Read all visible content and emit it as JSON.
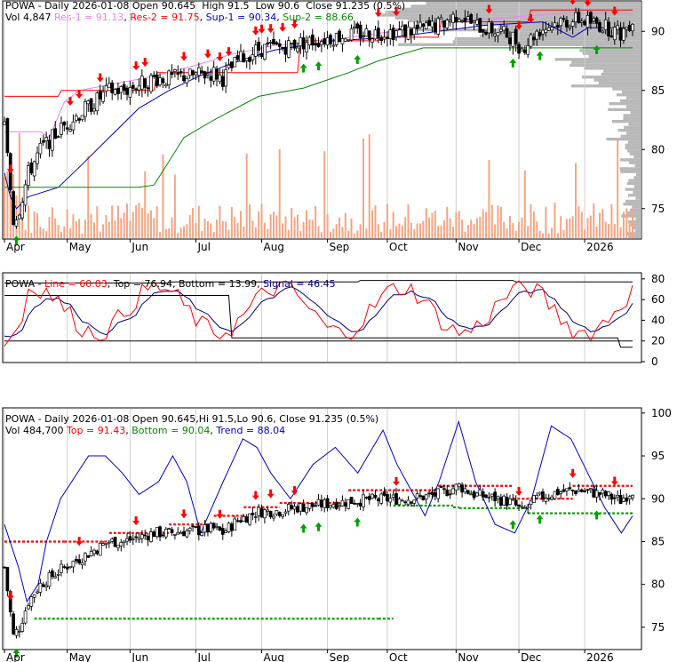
{
  "colors": {
    "up": "#ffffff",
    "down": "#000000",
    "res1": "#ee82ee",
    "res2": "#ff0000",
    "sup1": "#0000cc",
    "sup2": "#008800",
    "volume": "#f4a582",
    "vprofile": "#b0b0b0",
    "line": "#ff0000",
    "signal": "#000080",
    "top": "#000000",
    "bottom": "#000000",
    "trend": "#0000cc",
    "red_arrow": "#ff0000",
    "green_arrow": "#00a000"
  },
  "months": [
    "Apr",
    "May",
    "Jun",
    "Jul",
    "Aug",
    "Sep",
    "Oct",
    "Nov",
    "Dec",
    "2026"
  ],
  "panel1": {
    "ticker": "POWA",
    "desc": "Daily 2026-01-08",
    "open_label": "Open",
    "open": "90.645",
    "high_label": "High",
    "high": "91.5",
    "low_label": "Low",
    "low": "90.6",
    "close_label": "Close",
    "close": "91.235",
    "change": "(0.5%)",
    "vol_label": "Vol",
    "vol": "4,847",
    "res1_label": "Res-1",
    "res1": "91.13",
    "res2_label": "Res-2",
    "res2": "91.75",
    "sup1_label": "Sup-1",
    "sup1": "90.34",
    "sup2_label": "Sup-2",
    "sup2": "88.66",
    "yticks": [
      "90",
      "85",
      "80",
      "75"
    ]
  },
  "panel2": {
    "ticker": "POWA",
    "line_label": "Line",
    "line": "60.03",
    "top_label": "Top",
    "top": "76.94",
    "bottom_label": "Bottom",
    "bottom": "13.99",
    "signal_label": "Signal",
    "signal": "46.45",
    "yticks": [
      "80",
      "60",
      "40",
      "20",
      "0"
    ]
  },
  "panel3": {
    "ticker": "POWA",
    "desc": "Daily 2026-01-08",
    "open_label": "Open",
    "open": "90.645",
    "hi_label": "Hi",
    "hi": "91.5",
    "lo_label": "Lo",
    "lo": "90.6",
    "close_label": "Close",
    "close": "91.235",
    "change": "(0.5%)",
    "vol_label": "Vol",
    "vol": "484,700",
    "top_label": "Top",
    "top": "91.43",
    "bottom_label": "Bottom",
    "bottom": "90.04",
    "trend_label": "Trend",
    "trend": "88.04",
    "yticks": [
      "100",
      "95",
      "90",
      "85",
      "80",
      "75"
    ]
  },
  "chart_data": [
    {
      "type": "candlestick",
      "title": "POWA - Daily 2026-01-08",
      "ylim": [
        72.5,
        92.5
      ],
      "x_range": [
        "2025-04-01",
        "2026-01-08"
      ],
      "price_path": [
        [
          0,
          82
        ],
        [
          3,
          74
        ],
        [
          5,
          75
        ],
        [
          8,
          78
        ],
        [
          12,
          80
        ],
        [
          16,
          81
        ],
        [
          20,
          82
        ],
        [
          25,
          83
        ],
        [
          30,
          84
        ],
        [
          35,
          85
        ],
        [
          40,
          85
        ],
        [
          45,
          85.5
        ],
        [
          50,
          86
        ],
        [
          55,
          86
        ],
        [
          60,
          86.2
        ],
        [
          65,
          86.3
        ],
        [
          70,
          86.5
        ],
        [
          73,
          86
        ],
        [
          78,
          87.5
        ],
        [
          85,
          88.5
        ],
        [
          92,
          88.6
        ],
        [
          98,
          89
        ],
        [
          104,
          89.2
        ],
        [
          110,
          89.5
        ],
        [
          118,
          89.8
        ],
        [
          125,
          89.9
        ],
        [
          132,
          90
        ],
        [
          138,
          90.1
        ],
        [
          145,
          90.5
        ],
        [
          152,
          91.5
        ],
        [
          157,
          90.5
        ],
        [
          165,
          90
        ],
        [
          170,
          89.5
        ],
        [
          173,
          88.5
        ],
        [
          178,
          90
        ],
        [
          185,
          90.8
        ],
        [
          192,
          91
        ],
        [
          200,
          90.5
        ],
        [
          206,
          89.8
        ],
        [
          210,
          91
        ]
      ],
      "resistance_red": [
        [
          0,
          84.5
        ],
        [
          18,
          84.5
        ],
        [
          19,
          85
        ],
        [
          50,
          85
        ],
        [
          51,
          86.5
        ],
        [
          98,
          86.5
        ],
        [
          99,
          89.2
        ],
        [
          125,
          89.2
        ],
        [
          126,
          89.5
        ],
        [
          145,
          89.5
        ],
        [
          146,
          90.8
        ],
        [
          175,
          90.8
        ],
        [
          176,
          91.8
        ],
        [
          210,
          91.8
        ]
      ],
      "res1_violet": [
        [
          0,
          81.5
        ],
        [
          12,
          81.5
        ],
        [
          15,
          81
        ],
        [
          20,
          84
        ],
        [
          25,
          85
        ],
        [
          50,
          86.2
        ],
        [
          65,
          87.2
        ],
        [
          75,
          88
        ],
        [
          90,
          88.8
        ],
        [
          110,
          89.3
        ],
        [
          130,
          90
        ],
        [
          150,
          90.8
        ],
        [
          170,
          91.2
        ],
        [
          185,
          91.5
        ],
        [
          210,
          91.5
        ]
      ],
      "sup1_blue": [
        [
          0,
          78
        ],
        [
          2,
          76
        ],
        [
          4,
          75
        ],
        [
          8,
          76
        ],
        [
          18,
          76.8
        ],
        [
          25,
          78.5
        ],
        [
          35,
          81
        ],
        [
          45,
          83.5
        ],
        [
          55,
          85
        ],
        [
          65,
          86.2
        ],
        [
          75,
          87.2
        ],
        [
          90,
          88.4
        ],
        [
          110,
          89.2
        ],
        [
          130,
          89.5
        ],
        [
          145,
          90
        ],
        [
          160,
          90.5
        ],
        [
          180,
          90.8
        ],
        [
          190,
          89.5
        ],
        [
          195,
          90.3
        ],
        [
          210,
          90.3
        ]
      ],
      "sup2_green": [
        [
          0,
          76.8
        ],
        [
          45,
          76.8
        ],
        [
          50,
          77
        ],
        [
          55,
          79
        ],
        [
          60,
          81
        ],
        [
          70,
          82.5
        ],
        [
          85,
          84.5
        ],
        [
          100,
          85.2
        ],
        [
          115,
          86.5
        ],
        [
          125,
          87.5
        ],
        [
          140,
          88.6
        ],
        [
          165,
          88.6
        ],
        [
          180,
          88.6
        ],
        [
          210,
          88.6
        ]
      ],
      "red_arrow_days": [
        2,
        22,
        25,
        32,
        44,
        47,
        60,
        68,
        72,
        75,
        84,
        86,
        89,
        93,
        97,
        125,
        131,
        162,
        172,
        176,
        190,
        195,
        204
      ],
      "green_arrow_days": [
        4,
        100,
        105,
        118,
        170,
        179,
        198
      ],
      "volume_note": "daily volume bars along bottom of price panel"
    },
    {
      "type": "line",
      "series": [
        {
          "name": "Line",
          "last": 60.03
        },
        {
          "name": "Signal",
          "last": 46.45
        },
        {
          "name": "Top",
          "last": 76.94
        },
        {
          "name": "Bottom",
          "last": 13.99
        }
      ],
      "ylim": [
        0,
        85
      ]
    },
    {
      "type": "candlestick",
      "title": "POWA - Daily 2026-01-08",
      "ylim": [
        72.5,
        100.5
      ],
      "trend_path": [
        [
          0,
          87
        ],
        [
          5,
          82
        ],
        [
          8,
          78
        ],
        [
          12,
          80
        ],
        [
          15,
          85
        ],
        [
          20,
          90
        ],
        [
          30,
          95
        ],
        [
          36,
          95
        ],
        [
          42,
          93
        ],
        [
          48,
          90.5
        ],
        [
          55,
          92
        ],
        [
          60,
          95
        ],
        [
          65,
          92
        ],
        [
          70,
          86
        ],
        [
          78,
          92
        ],
        [
          85,
          97
        ],
        [
          90,
          96
        ],
        [
          95,
          93
        ],
        [
          102,
          90
        ],
        [
          110,
          94
        ],
        [
          118,
          96
        ],
        [
          126,
          93
        ],
        [
          135,
          98
        ],
        [
          140,
          94
        ],
        [
          145,
          91
        ],
        [
          150,
          88
        ],
        [
          155,
          92
        ],
        [
          162,
          99
        ],
        [
          168,
          92
        ],
        [
          175,
          87
        ],
        [
          182,
          86
        ],
        [
          188,
          90
        ],
        [
          195,
          98.5
        ],
        [
          202,
          97
        ],
        [
          208,
          93
        ],
        [
          214,
          89
        ],
        [
          220,
          86
        ],
        [
          224,
          88
        ]
      ],
      "top_levels": [
        [
          0,
          85
        ],
        [
          20,
          85
        ],
        [
          35,
          86
        ],
        [
          55,
          87
        ],
        [
          70,
          88
        ],
        [
          80,
          89
        ],
        [
          92,
          89.5
        ],
        [
          110,
          89.5
        ],
        [
          115,
          91
        ],
        [
          145,
          91.5
        ],
        [
          170,
          90
        ],
        [
          190,
          91.5
        ],
        [
          210,
          91.3
        ]
      ],
      "bottom_levels": [
        [
          10,
          76
        ],
        [
          125,
          76
        ],
        [
          130,
          89.2
        ],
        [
          150,
          89
        ],
        [
          152,
          88.9
        ],
        [
          175,
          88.3
        ],
        [
          210,
          88.1
        ]
      ]
    }
  ]
}
